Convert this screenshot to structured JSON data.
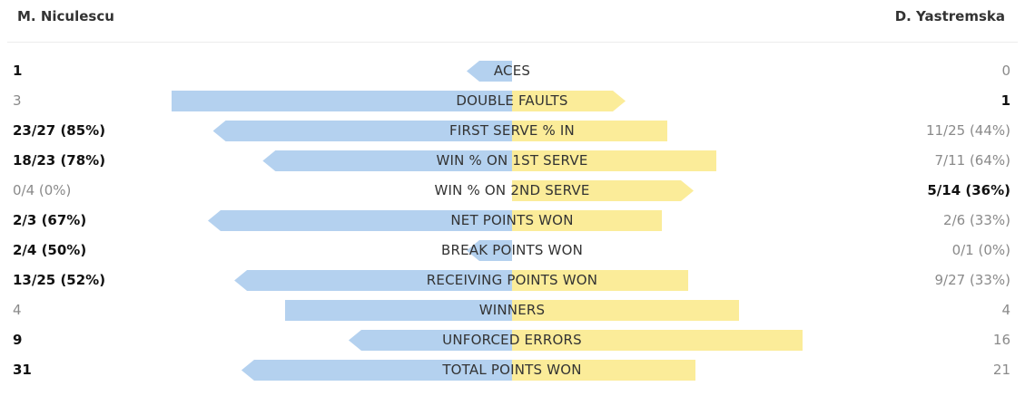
{
  "players": {
    "left": "M. Niculescu",
    "right": "D. Yastremska"
  },
  "colors": {
    "left_bar": "#b4d1ef",
    "right_bar": "#fbec99"
  },
  "chart_data": {
    "type": "bar",
    "orientation": "diverging-horizontal",
    "series": [
      {
        "name": "M. Niculescu"
      },
      {
        "name": "D. Yastremska"
      }
    ],
    "stats": [
      {
        "label": "ACES",
        "left": "1",
        "right": "0",
        "left_value": 1,
        "right_value": 0,
        "left_leads": true,
        "right_leads": false
      },
      {
        "label": "DOUBLE FAULTS",
        "left": "3",
        "right": "1",
        "left_value": 3,
        "right_value": 1,
        "left_leads": false,
        "right_leads": true
      },
      {
        "label": "FIRST SERVE % IN",
        "left": "23/27 (85%)",
        "right": "11/25 (44%)",
        "left_value": 85,
        "right_value": 44,
        "left_leads": true,
        "right_leads": false
      },
      {
        "label": "WIN % ON 1ST SERVE",
        "left": "18/23 (78%)",
        "right": "7/11 (64%)",
        "left_value": 78,
        "right_value": 64,
        "left_leads": true,
        "right_leads": false
      },
      {
        "label": "WIN % ON 2ND SERVE",
        "left": "0/4 (0%)",
        "right": "5/14 (36%)",
        "left_value": 0,
        "right_value": 36,
        "left_leads": false,
        "right_leads": true
      },
      {
        "label": "NET POINTS WON",
        "left": "2/3 (67%)",
        "right": "2/6 (33%)",
        "left_value": 67,
        "right_value": 33,
        "left_leads": true,
        "right_leads": false
      },
      {
        "label": "BREAK POINTS WON",
        "left": "2/4 (50%)",
        "right": "0/1 (0%)",
        "left_value": 50,
        "right_value": 0,
        "left_leads": true,
        "right_leads": false
      },
      {
        "label": "RECEIVING POINTS WON",
        "left": "13/25 (52%)",
        "right": "9/27 (33%)",
        "left_value": 52,
        "right_value": 33,
        "left_leads": true,
        "right_leads": false
      },
      {
        "label": "WINNERS",
        "left": "4",
        "right": "4",
        "left_value": 4,
        "right_value": 4,
        "left_leads": false,
        "right_leads": false
      },
      {
        "label": "UNFORCED ERRORS",
        "left": "9",
        "right": "16",
        "left_value": 9,
        "right_value": 16,
        "left_leads": true,
        "right_leads": false
      },
      {
        "label": "TOTAL POINTS WON",
        "left": "31",
        "right": "21",
        "left_value": 31,
        "right_value": 21,
        "left_leads": true,
        "right_leads": false
      }
    ]
  }
}
